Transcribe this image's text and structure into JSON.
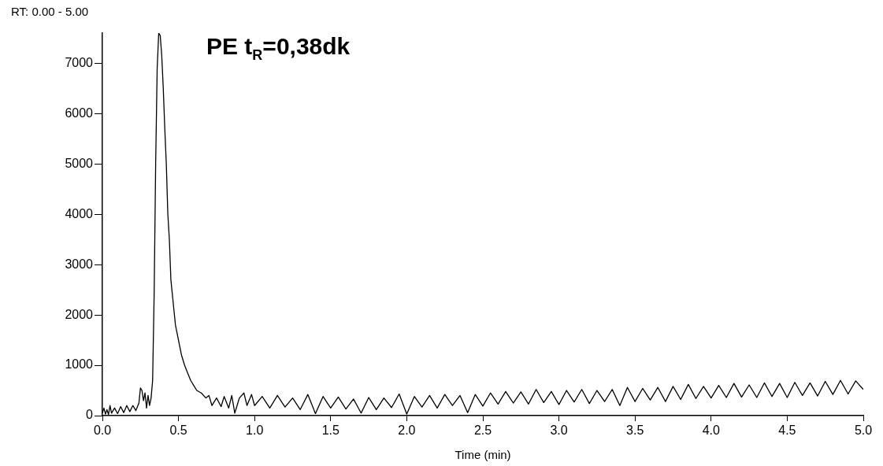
{
  "chart_data": {
    "type": "line",
    "subtitle": "RT: 0.00 - 5.00",
    "xlabel": "Time (min)",
    "annotations": [
      "PE t$_{R}$=0,38dk"
    ],
    "xlim": [
      0,
      5
    ],
    "xticks": [
      {
        "value": 0,
        "label": "0.0"
      },
      {
        "value": 0.5,
        "label": "0.5"
      },
      {
        "value": 1,
        "label": "1.0"
      },
      {
        "value": 1.5,
        "label": "1.5"
      },
      {
        "value": 2,
        "label": "2.0"
      },
      {
        "value": 2.5,
        "label": "2.5"
      },
      {
        "value": 3,
        "label": "3.0"
      },
      {
        "value": 3.5,
        "label": "3.5"
      },
      {
        "value": 4,
        "label": "4.0"
      },
      {
        "value": 4.5,
        "label": "4.5"
      },
      {
        "value": 5,
        "label": "5.0"
      }
    ],
    "ylim": [
      0,
      7600
    ],
    "yticks": [
      0,
      1000,
      2000,
      3000,
      4000,
      5000,
      6000,
      7000
    ],
    "marker": "none",
    "line_style": "solid",
    "series": [
      {
        "color": "#000000",
        "x": [
          0,
          0.01,
          0.02,
          0.03,
          0.04,
          0.05,
          0.06,
          0.08,
          0.1,
          0.12,
          0.14,
          0.16,
          0.18,
          0.2,
          0.22,
          0.24,
          0.25,
          0.26,
          0.27,
          0.28,
          0.29,
          0.3,
          0.31,
          0.32,
          0.33,
          0.34,
          0.35,
          0.36,
          0.37,
          0.38,
          0.39,
          0.4,
          0.41,
          0.42,
          0.43,
          0.44,
          0.45,
          0.46,
          0.47,
          0.48,
          0.5,
          0.52,
          0.54,
          0.56,
          0.58,
          0.6,
          0.62,
          0.65,
          0.68,
          0.7,
          0.72,
          0.75,
          0.78,
          0.8,
          0.83,
          0.85,
          0.87,
          0.9,
          0.93,
          0.95,
          0.98,
          1.0,
          1.05,
          1.1,
          1.15,
          1.2,
          1.25,
          1.3,
          1.35,
          1.4,
          1.45,
          1.5,
          1.55,
          1.6,
          1.65,
          1.7,
          1.75,
          1.8,
          1.85,
          1.9,
          1.95,
          2.0,
          2.05,
          2.1,
          2.15,
          2.2,
          2.25,
          2.3,
          2.35,
          2.4,
          2.45,
          2.5,
          2.55,
          2.6,
          2.65,
          2.7,
          2.75,
          2.8,
          2.85,
          2.9,
          2.95,
          3.0,
          3.05,
          3.1,
          3.15,
          3.2,
          3.25,
          3.3,
          3.35,
          3.4,
          3.45,
          3.5,
          3.55,
          3.6,
          3.65,
          3.7,
          3.75,
          3.8,
          3.85,
          3.9,
          3.95,
          4.0,
          4.05,
          4.1,
          4.15,
          4.2,
          4.25,
          4.3,
          4.35,
          4.4,
          4.45,
          4.5,
          4.55,
          4.6,
          4.65,
          4.7,
          4.75,
          4.8,
          4.85,
          4.9,
          4.95,
          5.0
        ],
        "values": [
          50,
          150,
          30,
          120,
          20,
          200,
          50,
          150,
          40,
          180,
          60,
          200,
          80,
          200,
          100,
          250,
          550,
          500,
          300,
          450,
          150,
          400,
          200,
          350,
          700,
          2400,
          5000,
          6900,
          7600,
          7550,
          7150,
          6500,
          5700,
          5000,
          4000,
          3500,
          2700,
          2400,
          2100,
          1800,
          1500,
          1200,
          1000,
          850,
          700,
          600,
          500,
          450,
          350,
          400,
          200,
          350,
          180,
          380,
          150,
          400,
          50,
          350,
          450,
          200,
          420,
          200,
          380,
          150,
          400,
          170,
          350,
          120,
          420,
          40,
          380,
          150,
          370,
          130,
          330,
          50,
          360,
          120,
          350,
          160,
          430,
          30,
          380,
          170,
          400,
          150,
          420,
          200,
          400,
          60,
          420,
          190,
          450,
          230,
          480,
          250,
          470,
          230,
          520,
          260,
          480,
          220,
          500,
          270,
          520,
          240,
          500,
          280,
          520,
          200,
          560,
          280,
          540,
          310,
          560,
          280,
          580,
          320,
          620,
          340,
          580,
          350,
          600,
          360,
          640,
          370,
          610,
          360,
          650,
          380,
          640,
          360,
          660,
          400,
          650,
          390,
          680,
          420,
          700,
          430,
          690,
          520
        ]
      }
    ]
  }
}
